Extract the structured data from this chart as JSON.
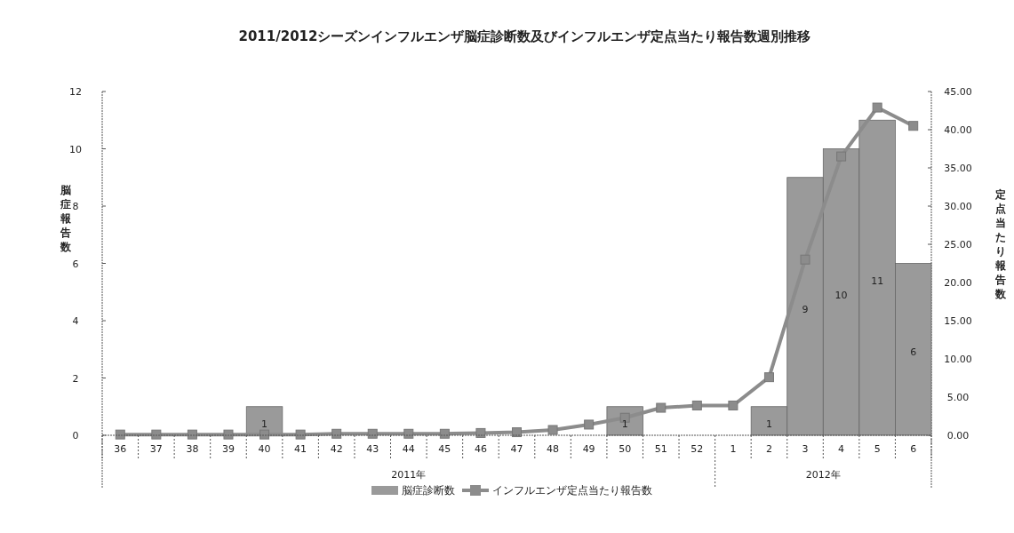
{
  "chart_data": {
    "type": "bar",
    "title": "2011/2012シーズンインフルエンザ脳症診断数及びインフルエンザ定点当たり報告数週別推移",
    "ylabel": "脳症報告数",
    "y2label": "定点当たり報告数",
    "categories": [
      "36",
      "37",
      "38",
      "39",
      "40",
      "41",
      "42",
      "43",
      "44",
      "45",
      "46",
      "47",
      "48",
      "49",
      "50",
      "51",
      "52",
      "1",
      "2",
      "3",
      "4",
      "5",
      "6"
    ],
    "series": [
      {
        "name": "脳症診断数",
        "color": "#9a9a9a",
        "values": [
          0,
          0,
          0,
          0,
          1,
          0,
          0,
          0,
          0,
          0,
          0,
          0,
          0,
          0,
          1,
          0,
          0,
          0,
          1,
          9,
          10,
          11,
          6
        ],
        "value_labels": [
          null,
          null,
          null,
          null,
          "1",
          null,
          null,
          null,
          null,
          null,
          null,
          null,
          null,
          null,
          "1",
          null,
          null,
          null,
          "1",
          "9",
          "10",
          "11",
          "6"
        ]
      },
      {
        "name": "インフルエンザ定点当たり報告数",
        "type": "line",
        "axis": "y2",
        "color": "#8c8c8c",
        "marker": "square",
        "values": [
          0.1,
          0.1,
          0.1,
          0.1,
          0.1,
          0.1,
          0.2,
          0.2,
          0.2,
          0.2,
          0.3,
          0.4,
          0.7,
          1.4,
          2.3,
          3.6,
          3.9,
          3.9,
          7.6,
          23,
          36.5,
          42.9,
          40.5
        ]
      }
    ],
    "ylim": [
      0,
      12
    ],
    "yticks": [
      0,
      2,
      4,
      6,
      8,
      10,
      12
    ],
    "y2lim": [
      0,
      45
    ],
    "y2ticks": [
      {
        "value": 0,
        "label": "0.00"
      },
      {
        "value": 5,
        "label": "5.00"
      },
      {
        "value": 10,
        "label": "10.00"
      },
      {
        "value": 15,
        "label": "15.00"
      },
      {
        "value": 20,
        "label": "20.00"
      },
      {
        "value": 25,
        "label": "25.00"
      },
      {
        "value": 30,
        "label": "30.00"
      },
      {
        "value": 35,
        "label": "35.00"
      },
      {
        "value": 40,
        "label": "40.00"
      },
      {
        "value": 45,
        "label": "45.00"
      }
    ],
    "annotations": [
      "2011年",
      "2012年"
    ],
    "legend": "bottom",
    "grid": false
  }
}
